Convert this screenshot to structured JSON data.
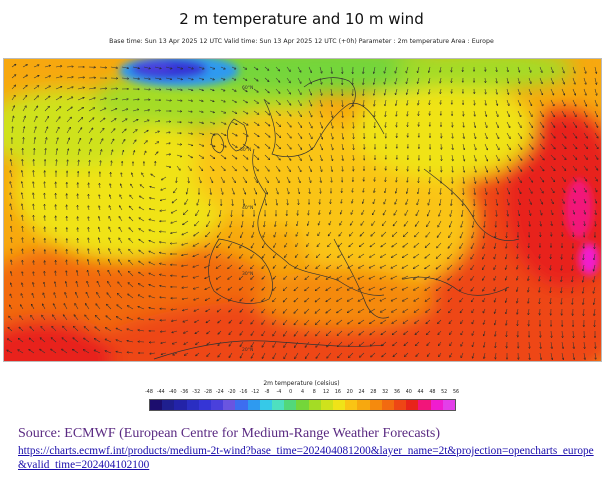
{
  "header": {
    "title": "2 m temperature and 10 m wind",
    "subtitle": "Base time: Sun 13 Apr 2025 12 UTC Valid time: Sun 13 Apr 2025 12 UTC (+0h) Parameter : 2m temperature Area : Europe"
  },
  "legend": {
    "title": "2m temperature (celsius)",
    "ticks": [
      "-48",
      "-44",
      "-40",
      "-36",
      "-32",
      "-28",
      "-24",
      "-20",
      "-16",
      "-12",
      "-8",
      "-4",
      "0",
      "4",
      "8",
      "12",
      "16",
      "20",
      "24",
      "28",
      "32",
      "36",
      "40",
      "44",
      "48",
      "52",
      "56"
    ],
    "colors": [
      "#1c0d6e",
      "#1f1f8f",
      "#2323a8",
      "#2a2ec2",
      "#3535d6",
      "#4a40dc",
      "#6a55e0",
      "#3d6df0",
      "#2e9af0",
      "#36c9e8",
      "#4ee0c0",
      "#52d87a",
      "#74d63a",
      "#a4dc25",
      "#cfe21c",
      "#f0e318",
      "#fac414",
      "#f7a80f",
      "#f58a0d",
      "#f26a10",
      "#ee4615",
      "#e8241a",
      "#f2157a",
      "#f01ccf",
      "#e33fe9"
    ]
  },
  "source": {
    "text": "Source: ECMWF (European Centre for Medium-Range Weather Forecasts)",
    "url": "https://charts.ecmwf.int/products/medium-2t-wind?base_time=202404081200&layer_name=2t&projection=opencharts_europe&valid_time=202404102100"
  }
}
